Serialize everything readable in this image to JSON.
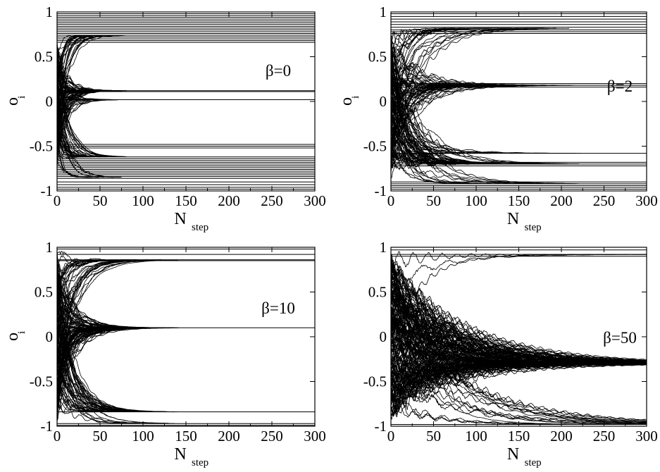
{
  "chart_data": [
    {
      "type": "line",
      "annotation": "β=0",
      "xlabel_main": "N",
      "xlabel_sub": "step",
      "ylabel_main": "o",
      "ylabel_sub": "i",
      "xlim": [
        0,
        300
      ],
      "ylim": [
        -1,
        1
      ],
      "xticks": [
        0,
        50,
        100,
        150,
        200,
        250,
        300
      ],
      "yticks": [
        -1,
        -0.5,
        0,
        0.5,
        1
      ],
      "xtick_labels": [
        "0",
        "50",
        "100",
        "150",
        "200",
        "250",
        "300"
      ],
      "ytick_labels": [
        "-1",
        "-0.5",
        "0",
        "0.5",
        "1"
      ],
      "trajectories": {
        "start": 0,
        "end": 300,
        "count": 150,
        "start_spread": 0.72,
        "converge_tau": 8,
        "attractors": [
          {
            "value": 0.12,
            "weight": 0.45
          },
          {
            "value": -0.62,
            "weight": 0.25
          },
          {
            "value": 0.74,
            "weight": 0.1
          },
          {
            "value": -0.85,
            "weight": 0.1
          },
          {
            "value": 0.02,
            "weight": 0.1
          }
        ]
      },
      "flat_lines": [
        0.98,
        0.96,
        0.94,
        0.92,
        0.9,
        0.88,
        0.86,
        0.84,
        0.82,
        0.8,
        0.78,
        0.76,
        0.74,
        0.72,
        0.7,
        0.68,
        0.66,
        0.12,
        0.11,
        0.02,
        -0.48,
        -0.5,
        -0.52,
        -0.62,
        -0.64,
        -0.66,
        -0.68,
        -0.7,
        -0.72,
        -0.74,
        -0.76,
        -0.78,
        -0.8,
        -0.82,
        -0.84,
        -0.86,
        -0.9,
        -0.93,
        -0.96,
        -0.98
      ]
    },
    {
      "type": "line",
      "annotation": "β=2",
      "xlabel_main": "N",
      "xlabel_sub": "step",
      "ylabel_main": "o",
      "ylabel_sub": "i",
      "xlim": [
        0,
        300
      ],
      "ylim": [
        -1,
        1
      ],
      "xticks": [
        0,
        50,
        100,
        150,
        200,
        250,
        300
      ],
      "yticks": [
        -1,
        -0.5,
        0,
        0.5,
        1
      ],
      "xtick_labels": [
        "0",
        "50",
        "100",
        "150",
        "200",
        "250",
        "300"
      ],
      "ytick_labels": [
        "-1",
        "-0.5",
        "0",
        "0.5",
        "1"
      ],
      "trajectories": {
        "start": 0,
        "end": 300,
        "count": 150,
        "start_spread": 0.72,
        "converge_tau": 22,
        "attractors": [
          {
            "value": 0.18,
            "weight": 0.35
          },
          {
            "value": -0.7,
            "weight": 0.35
          },
          {
            "value": 0.82,
            "weight": 0.12
          },
          {
            "value": -0.92,
            "weight": 0.1
          },
          {
            "value": -0.58,
            "weight": 0.08
          }
        ]
      },
      "flat_lines": [
        0.98,
        0.95,
        0.92,
        0.89,
        0.86,
        0.83,
        0.8,
        0.78,
        0.76,
        0.2,
        0.18,
        0.16,
        -0.58,
        -0.68,
        -0.7,
        -0.72,
        -0.9,
        -0.92,
        -0.94,
        -0.96,
        -0.98
      ]
    },
    {
      "type": "line",
      "annotation": "β=10",
      "xlabel_main": "N",
      "xlabel_sub": "step",
      "ylabel_main": "o",
      "ylabel_sub": "i",
      "xlim": [
        0,
        300
      ],
      "ylim": [
        -1,
        1
      ],
      "xticks": [
        0,
        50,
        100,
        150,
        200,
        250,
        300
      ],
      "yticks": [
        -1,
        -0.5,
        0,
        0.5,
        1
      ],
      "xtick_labels": [
        "0",
        "50",
        "100",
        "150",
        "200",
        "250",
        "300"
      ],
      "ytick_labels": [
        "-1",
        "-0.5",
        "0",
        "0.5",
        "1"
      ],
      "trajectories": {
        "start": 0,
        "end": 300,
        "count": 180,
        "start_spread": 0.9,
        "converge_tau": 14,
        "attractors": [
          {
            "value": 0.1,
            "weight": 0.55
          },
          {
            "value": 0.86,
            "weight": 0.2
          },
          {
            "value": -0.84,
            "weight": 0.2
          },
          {
            "value": -0.97,
            "weight": 0.05
          }
        ]
      },
      "flat_lines": [
        0.98,
        0.92,
        0.86,
        0.85,
        0.1,
        -0.84,
        -0.97,
        -0.99
      ]
    },
    {
      "type": "line",
      "annotation": "β=50",
      "xlabel_main": "N",
      "xlabel_sub": "step",
      "ylabel_main": "",
      "ylabel_sub": "",
      "xlim": [
        0,
        300
      ],
      "ylim": [
        -1,
        1
      ],
      "xticks": [
        0,
        50,
        100,
        150,
        200,
        250,
        300
      ],
      "yticks": [
        -1,
        -0.5,
        0,
        0.5,
        1
      ],
      "xtick_labels": [
        "0",
        "50",
        "100",
        "150",
        "200",
        "250",
        "300"
      ],
      "ytick_labels": [
        "-1",
        "-0.5",
        "0",
        "0.5",
        "1"
      ],
      "trajectories": {
        "start": 0,
        "end": 300,
        "count": 200,
        "start_spread": 0.88,
        "converge_tau": 55,
        "attractors": [
          {
            "value": -0.3,
            "weight": 0.88
          },
          {
            "value": 0.92,
            "weight": 0.06
          },
          {
            "value": -0.98,
            "weight": 0.06
          }
        ]
      },
      "flat_lines": [
        0.97,
        0.92,
        0.9,
        -0.3,
        -0.98
      ]
    }
  ]
}
